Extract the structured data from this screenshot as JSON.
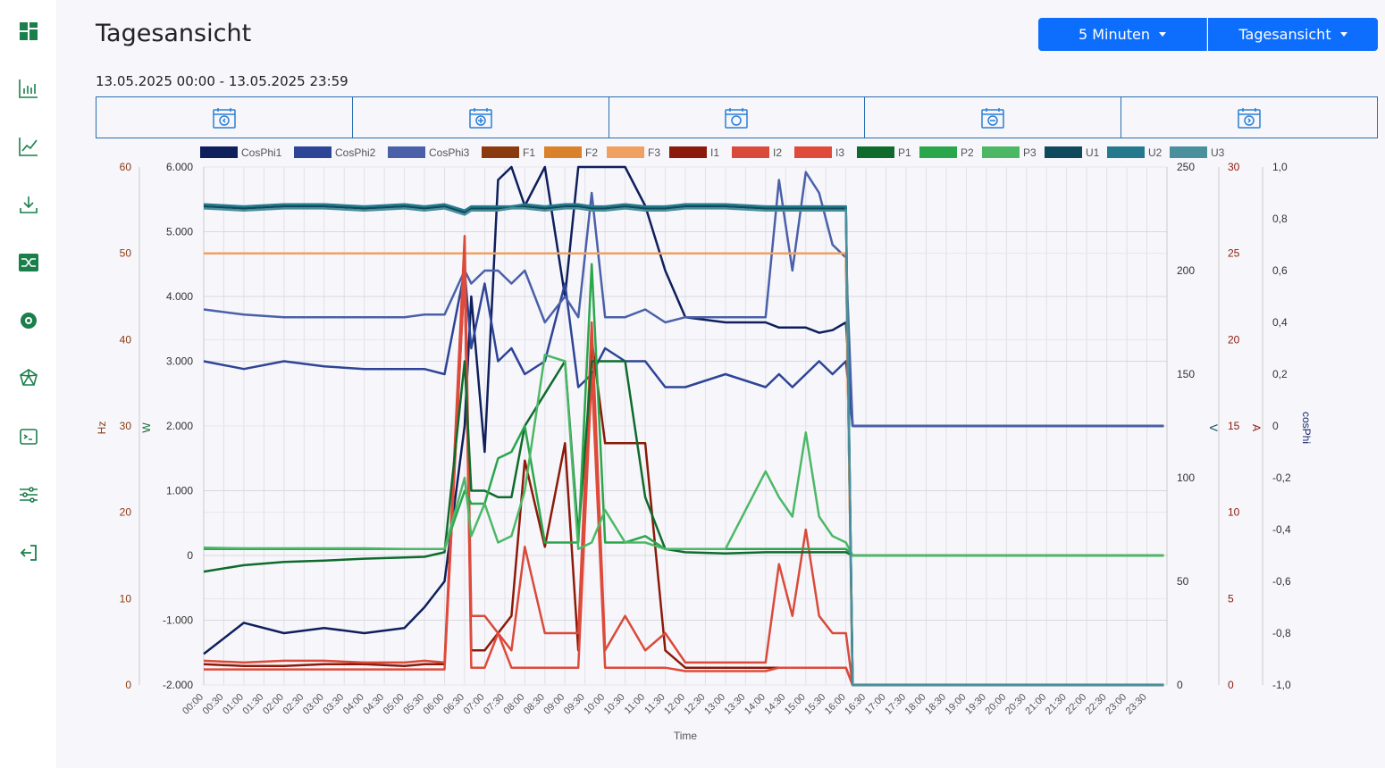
{
  "page": {
    "title": "Tagesansicht",
    "date_range": "13.05.2025 00:00 - 13.05.2025 23:59"
  },
  "controls": {
    "interval_label": "5 Minuten",
    "view_label": "Tagesansicht"
  },
  "sidebar": {
    "items": [
      {
        "icon": "dashboard-icon"
      },
      {
        "icon": "bar-chart-icon"
      },
      {
        "icon": "line-chart-icon"
      },
      {
        "icon": "download-icon"
      },
      {
        "icon": "flow-icon"
      },
      {
        "icon": "grafana-icon"
      },
      {
        "icon": "polyhedron-icon"
      },
      {
        "icon": "terminal-icon"
      },
      {
        "icon": "sliders-icon"
      },
      {
        "icon": "logout-icon"
      }
    ]
  },
  "nav": {
    "icons": [
      "calendar-prev-icon",
      "calendar-plus-icon",
      "calendar-today-icon",
      "calendar-minus-icon",
      "calendar-next-icon"
    ]
  },
  "colors": {
    "accent": "#0d6efd",
    "sidebar_icon": "#1a7f4b",
    "nav_icon": "#2a7fd4"
  },
  "chart_data": {
    "type": "line",
    "xlabel": "Time",
    "x_ticks": [
      "00:00",
      "00:30",
      "01:00",
      "01:30",
      "02:00",
      "02:30",
      "03:00",
      "03:30",
      "04:00",
      "04:30",
      "05:00",
      "05:30",
      "06:00",
      "06:30",
      "07:00",
      "07:30",
      "08:00",
      "08:30",
      "09:00",
      "09:30",
      "10:00",
      "10:30",
      "11:00",
      "11:30",
      "12:00",
      "12:30",
      "13:00",
      "13:30",
      "14:00",
      "14:30",
      "15:00",
      "15:30",
      "16:00",
      "16:30",
      "17:00",
      "17:30",
      "18:00",
      "18:30",
      "19:00",
      "19:30",
      "20:00",
      "20:30",
      "21:00",
      "21:30",
      "22:00",
      "22:30",
      "23:00",
      "23:30"
    ],
    "axes": {
      "hz": {
        "label": "Hz",
        "range": [
          0,
          60
        ],
        "ticks": [
          "0",
          "10",
          "20",
          "30",
          "40",
          "50",
          "60"
        ],
        "color": "#8b3a0f"
      },
      "w": {
        "label": "W",
        "range": [
          -2000,
          6000
        ],
        "ticks": [
          "-2.000",
          "-1.000",
          "0",
          "1.000",
          "2.000",
          "3.000",
          "4.000",
          "5.000",
          "6.000"
        ],
        "color": "#0e6b2c"
      },
      "v": {
        "label": "V",
        "range": [
          0,
          250
        ],
        "ticks": [
          "0",
          "50",
          "100",
          "150",
          "200",
          "250"
        ],
        "color": "#0e4a5c"
      },
      "a": {
        "label": "A",
        "range": [
          0,
          30
        ],
        "ticks": [
          "0",
          "5",
          "10",
          "15",
          "20",
          "25",
          "30"
        ],
        "color": "#8b1a0a"
      },
      "cosphi": {
        "label": "cosPhi",
        "range": [
          -1,
          1
        ],
        "ticks": [
          "-1,0",
          "-0,8",
          "-0,6",
          "-0,4",
          "-0,2",
          "0",
          "0,2",
          "0,4",
          "0,6",
          "0,8",
          "1,0"
        ],
        "color": "#1a2a6c"
      }
    },
    "legend_position": "top",
    "grid": true,
    "x": [
      "00:00",
      "01:00",
      "02:00",
      "03:00",
      "04:00",
      "05:00",
      "05:30",
      "06:00",
      "06:30",
      "06:40",
      "07:00",
      "07:20",
      "07:40",
      "08:00",
      "08:30",
      "09:00",
      "09:20",
      "09:40",
      "10:00",
      "10:30",
      "11:00",
      "11:30",
      "12:00",
      "13:00",
      "14:00",
      "14:20",
      "14:40",
      "15:00",
      "15:20",
      "15:40",
      "16:00",
      "16:10",
      "17:00",
      "18:00",
      "20:00",
      "22:00",
      "23:55"
    ],
    "series": [
      {
        "name": "CosPhi1",
        "axis": "cosphi",
        "color": "#0f1f5c",
        "values": [
          -0.88,
          -0.76,
          -0.8,
          -0.78,
          -0.8,
          -0.78,
          -0.7,
          -0.6,
          0.0,
          0.5,
          -0.1,
          0.95,
          1.0,
          0.85,
          1.0,
          0.5,
          1.0,
          1.0,
          1.0,
          1.0,
          0.85,
          0.6,
          0.42,
          0.4,
          0.4,
          0.38,
          0.38,
          0.38,
          0.36,
          0.37,
          0.4,
          0.0,
          0.0,
          0.0,
          0.0,
          0.0,
          0.0
        ]
      },
      {
        "name": "CosPhi2",
        "axis": "cosphi",
        "color": "#2e4496",
        "values": [
          0.25,
          0.22,
          0.25,
          0.23,
          0.22,
          0.22,
          0.22,
          0.2,
          0.6,
          0.3,
          0.55,
          0.25,
          0.3,
          0.2,
          0.25,
          0.55,
          0.15,
          0.2,
          0.3,
          0.25,
          0.25,
          0.15,
          0.15,
          0.2,
          0.15,
          0.2,
          0.15,
          0.2,
          0.25,
          0.2,
          0.25,
          0.0,
          0.0,
          0.0,
          0.0,
          0.0,
          0.0
        ]
      },
      {
        "name": "CosPhi3",
        "axis": "cosphi",
        "color": "#4a60a8",
        "values": [
          0.45,
          0.43,
          0.42,
          0.42,
          0.42,
          0.42,
          0.43,
          0.43,
          0.6,
          0.55,
          0.6,
          0.6,
          0.55,
          0.6,
          0.4,
          0.5,
          0.42,
          0.9,
          0.42,
          0.42,
          0.45,
          0.4,
          0.42,
          0.42,
          0.42,
          0.95,
          0.6,
          0.98,
          0.9,
          0.7,
          0.65,
          0.0,
          0.0,
          0.0,
          0.0,
          0.0,
          0.0
        ]
      },
      {
        "name": "F1",
        "axis": "hz",
        "color": "#8b3a0f",
        "values": [
          50,
          50,
          50,
          50,
          50,
          50,
          50,
          50,
          50,
          50,
          50,
          50,
          50,
          50,
          50,
          50,
          50,
          50,
          50,
          50,
          50,
          50,
          50,
          50,
          50,
          50,
          50,
          50,
          50,
          50,
          50,
          0,
          0,
          0,
          0,
          0,
          0
        ]
      },
      {
        "name": "F2",
        "axis": "hz",
        "color": "#d9822b",
        "values": [
          50,
          50,
          50,
          50,
          50,
          50,
          50,
          50,
          50,
          50,
          50,
          50,
          50,
          50,
          50,
          50,
          50,
          50,
          50,
          50,
          50,
          50,
          50,
          50,
          50,
          50,
          50,
          50,
          50,
          50,
          50,
          0,
          0,
          0,
          0,
          0,
          0
        ]
      },
      {
        "name": "F3",
        "axis": "hz",
        "color": "#f0a060",
        "values": [
          50,
          50,
          50,
          50,
          50,
          50,
          50,
          50,
          50,
          50,
          50,
          50,
          50,
          50,
          50,
          50,
          50,
          50,
          50,
          50,
          50,
          50,
          50,
          50,
          50,
          50,
          50,
          50,
          50,
          50,
          50,
          0,
          0,
          0,
          0,
          0,
          0
        ]
      },
      {
        "name": "I1",
        "axis": "a",
        "color": "#8b1a0a",
        "values": [
          1.2,
          1.1,
          1.1,
          1.2,
          1.2,
          1.1,
          1.2,
          1.2,
          24,
          2,
          2,
          3,
          4,
          13,
          8,
          14,
          2,
          20,
          14,
          14,
          14,
          2,
          1,
          1,
          1,
          1,
          1,
          1,
          1,
          1,
          1,
          0,
          0,
          0,
          0,
          0,
          0
        ]
      },
      {
        "name": "I2",
        "axis": "a",
        "color": "#d94a3a",
        "values": [
          1.4,
          1.3,
          1.4,
          1.4,
          1.3,
          1.3,
          1.4,
          1.3,
          26,
          4,
          4,
          3,
          2,
          8,
          3,
          3,
          3,
          21,
          2,
          4,
          2,
          3,
          1.3,
          1.3,
          1.3,
          7,
          4,
          9,
          4,
          3,
          3,
          0,
          0,
          0,
          0,
          0,
          0
        ]
      },
      {
        "name": "I3",
        "axis": "a",
        "color": "#e04a3a",
        "values": [
          0.9,
          0.9,
          0.9,
          0.9,
          0.9,
          0.9,
          0.9,
          0.9,
          24,
          1,
          1,
          3,
          1,
          1,
          1,
          1,
          1,
          18,
          1,
          1,
          1,
          1,
          0.8,
          0.8,
          0.8,
          1,
          1,
          1,
          1,
          1,
          1,
          0,
          0,
          0,
          0,
          0,
          0
        ]
      },
      {
        "name": "P1",
        "axis": "w",
        "color": "#0e6b2c",
        "values": [
          -250,
          -150,
          -100,
          -80,
          -50,
          -30,
          -20,
          50,
          3000,
          1000,
          1000,
          900,
          900,
          2000,
          2500,
          3000,
          300,
          3000,
          3000,
          3000,
          900,
          100,
          50,
          30,
          50,
          50,
          50,
          50,
          50,
          50,
          50,
          0,
          0,
          0,
          0,
          0,
          0
        ]
      },
      {
        "name": "P2",
        "axis": "w",
        "color": "#2aa64b",
        "values": [
          100,
          100,
          100,
          100,
          100,
          100,
          100,
          100,
          1000,
          800,
          800,
          1500,
          1600,
          2000,
          200,
          200,
          200,
          4500,
          200,
          200,
          300,
          100,
          100,
          100,
          100,
          100,
          100,
          100,
          100,
          100,
          100,
          0,
          0,
          0,
          0,
          0,
          0
        ]
      },
      {
        "name": "P3",
        "axis": "w",
        "color": "#4cb866",
        "values": [
          120,
          110,
          110,
          110,
          110,
          100,
          100,
          100,
          1200,
          300,
          800,
          200,
          300,
          1000,
          3100,
          3000,
          100,
          200,
          700,
          200,
          200,
          100,
          100,
          100,
          1300,
          900,
          600,
          1900,
          600,
          300,
          200,
          0,
          0,
          0,
          0,
          0,
          0
        ]
      },
      {
        "name": "U1",
        "axis": "v",
        "color": "#0e4a5c",
        "values": [
          231,
          230,
          231,
          231,
          230,
          231,
          230,
          231,
          228,
          230,
          230,
          230,
          231,
          231,
          230,
          231,
          231,
          230,
          230,
          231,
          230,
          230,
          231,
          231,
          230,
          230,
          230,
          230,
          230,
          230,
          230,
          0,
          0,
          0,
          0,
          0,
          0
        ]
      },
      {
        "name": "U2",
        "axis": "v",
        "color": "#25798c",
        "values": [
          232,
          231,
          232,
          232,
          231,
          232,
          231,
          232,
          229,
          231,
          231,
          231,
          231,
          232,
          231,
          232,
          232,
          231,
          231,
          232,
          231,
          231,
          232,
          232,
          231,
          231,
          231,
          231,
          231,
          231,
          231,
          0,
          0,
          0,
          0,
          0,
          0
        ]
      },
      {
        "name": "U3",
        "axis": "v",
        "color": "#4a8f9c",
        "values": [
          230,
          229,
          230,
          230,
          229,
          230,
          229,
          230,
          227,
          229,
          229,
          229,
          230,
          230,
          229,
          230,
          230,
          229,
          229,
          230,
          229,
          229,
          230,
          230,
          229,
          229,
          229,
          229,
          229,
          229,
          229,
          0,
          0,
          0,
          0,
          0,
          0
        ]
      }
    ]
  }
}
